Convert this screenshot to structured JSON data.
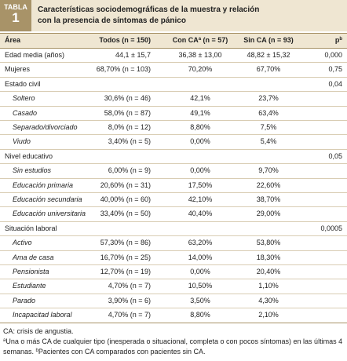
{
  "tag": {
    "label": "TABLA",
    "number": "1"
  },
  "title": "Características sociodemográficas de la muestra y relación con la presencia de síntomas de pánico",
  "table": {
    "header": [
      {
        "text": "Área"
      },
      {
        "text": "Todos (n = 150)"
      },
      {
        "text": "Con CA",
        "sup": "a",
        "rest": " (n = 57)"
      },
      {
        "text": "Sin CA (n = 93)"
      },
      {
        "text": "p",
        "sup": "b"
      }
    ],
    "rows": [
      {
        "cells": [
          "Edad media (años)",
          "44,1 ± 15,7",
          "36,38 ± 13,00",
          "48,82 ± 15,32",
          "0,000"
        ]
      },
      {
        "cells": [
          "Mujeres",
          "68,70% (n = 103)",
          "70,20%",
          "67,70%",
          "0,75"
        ]
      },
      {
        "cells": [
          "Estado civil",
          null,
          null,
          null,
          "0,04"
        ],
        "subrows": [
          [
            "Soltero",
            "30,6% (n = 46)",
            "42,1%",
            "23,7%",
            null
          ],
          [
            "Casado",
            "58,0% (n = 87)",
            "49,1%",
            "63,4%",
            null
          ],
          [
            "Separado/divorciado",
            "8,0% (n = 12)",
            "8,80%",
            "7,5%",
            null
          ],
          [
            "Viudo",
            "3,40% (n = 5)",
            "0,00%",
            "5,4%",
            null
          ]
        ]
      },
      {
        "cells": [
          "Nivel educativo",
          null,
          null,
          null,
          "0,05"
        ],
        "subrows": [
          [
            "Sin estudios",
            "6,00% (n = 9)",
            "0,00%",
            "9,70%",
            null
          ],
          [
            "Educación primaria",
            "20,60% (n = 31)",
            "17,50%",
            "22,60%",
            null
          ],
          [
            "Educación secundaria",
            "40,00% (n = 60)",
            "42,10%",
            "38,70%",
            null
          ],
          [
            "Educación universitaria",
            "33,40% (n = 50)",
            "40,40%",
            "29,00%",
            null
          ]
        ]
      },
      {
        "cells": [
          "Situación laboral",
          null,
          null,
          null,
          "0,0005"
        ],
        "subrows": [
          [
            "Activo",
            "57,30% (n = 86)",
            "63,20%",
            "53,80%",
            null
          ],
          [
            "Ama de casa",
            "16,70% (n = 25)",
            "14,00%",
            "18,30%",
            null
          ],
          [
            "Pensionista",
            "12,70% (n = 19)",
            "0,00%",
            "20,40%",
            null
          ],
          [
            "Estudiante",
            "4,70% (n = 7)",
            "10,50%",
            "1,10%",
            null
          ],
          [
            "Parado",
            "3,90% (n = 6)",
            "3,50%",
            "4,30%",
            null
          ],
          [
            "Incapacitad laboral",
            "4,70% (n = 7)",
            "8,80%",
            "2,10%",
            null
          ]
        ]
      }
    ]
  },
  "footnotes": [
    {
      "text": "CA: crisis de angustia."
    },
    {
      "sup": "a",
      "text": "Una o más CA de cualquier tipo (inesperada o situacional, completa o con pocos síntomas) en las últimas 4 semanas. "
    },
    {
      "sup": "b",
      "text": "Pacientes con CA comparados con pacientes sin CA."
    }
  ]
}
